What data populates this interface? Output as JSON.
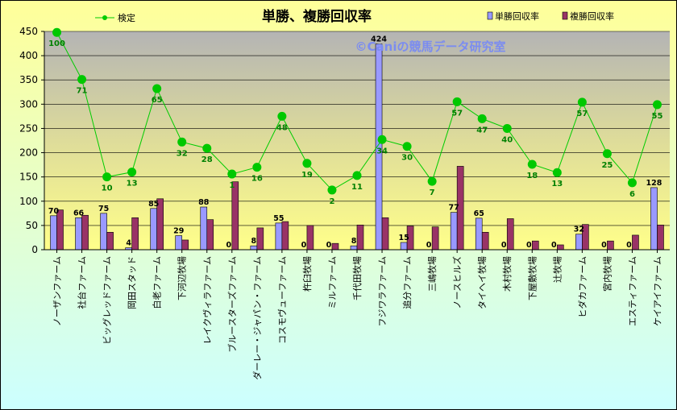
{
  "chart_data": {
    "type": "bar",
    "title": "単勝、複勝回収率",
    "watermark": "©Caniの競馬データ研究室",
    "ylim": [
      0,
      450
    ],
    "yticks": [
      0,
      50,
      100,
      150,
      200,
      250,
      300,
      350,
      400,
      450
    ],
    "grid": true,
    "legend_position": "top",
    "categories": [
      "ノーザンファーム",
      "社台ファーム",
      "ビッグレッドファーム",
      "岡田スタッド",
      "白老ファーム",
      "下河辺牧場",
      "レイクヴィラファーム",
      "ブルースターズファーム",
      "ダーレー・ジャパン・ファーム",
      "コスモヴューファーム",
      "杵臼牧場",
      "ミルファーム",
      "千代田牧場",
      "フジワラファーム",
      "追分ファーム",
      "三嶋牧場",
      "ノースヒルズ",
      "タイヘイ牧場",
      "木村牧場",
      "下屋敷牧場",
      "辻牧場",
      "ヒダカファーム",
      "宮内牧場",
      "エスティファーム",
      "ケイアイファーム"
    ],
    "series": [
      {
        "name": "単勝回収率",
        "kind": "bar",
        "color": "#9999ff",
        "values": [
          70,
          66,
          75,
          4,
          85,
          29,
          88,
          0,
          8,
          55,
          0,
          0,
          8,
          424,
          15,
          0,
          77,
          65,
          0,
          0,
          0,
          32,
          0,
          0,
          128
        ]
      },
      {
        "name": "複勝回収率",
        "kind": "bar",
        "color": "#993366",
        "values": [
          82,
          71,
          36,
          66,
          105,
          20,
          62,
          140,
          45,
          58,
          50,
          13,
          51,
          66,
          49,
          47,
          172,
          36,
          64,
          18,
          10,
          52,
          18,
          30,
          51
        ]
      },
      {
        "name": "検定",
        "kind": "line",
        "color": "#00cc00",
        "values": [
          448,
          351,
          150,
          160,
          332,
          222,
          209,
          156,
          170,
          275,
          178,
          123,
          153,
          227,
          213,
          141,
          305,
          270,
          250,
          176,
          159,
          304,
          198,
          138,
          299
        ],
        "labels": [
          "100",
          "71",
          "10",
          "13",
          "65",
          "32",
          "28",
          "1",
          "16",
          "48",
          "19",
          "2",
          "11",
          "34",
          "30",
          "7",
          "57",
          "47",
          "40",
          "18",
          "13",
          "57",
          "25",
          "6",
          "55"
        ]
      }
    ]
  }
}
